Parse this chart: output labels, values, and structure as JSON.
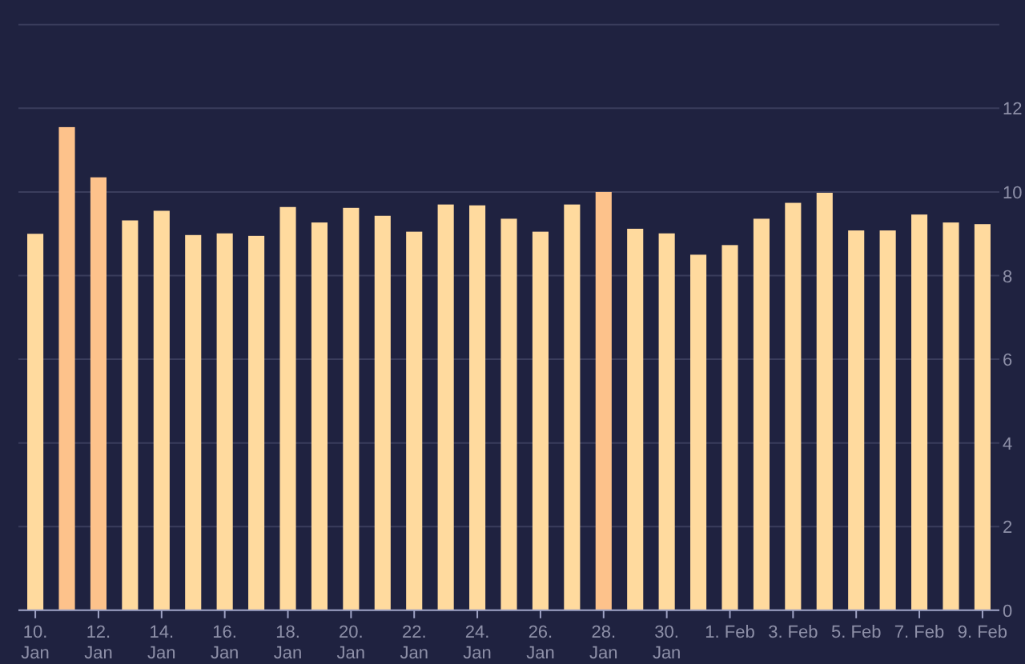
{
  "chart_data": {
    "type": "bar",
    "categories": [
      "10. Jan",
      null,
      "12. Jan",
      null,
      "14. Jan",
      null,
      "16. Jan",
      null,
      "18. Jan",
      null,
      "20. Jan",
      null,
      "22. Jan",
      null,
      "24. Jan",
      null,
      "26. Jan",
      null,
      "28. Jan",
      null,
      "30. Jan",
      null,
      "1. Feb",
      null,
      "3. Feb",
      null,
      "5. Feb",
      null,
      "7. Feb",
      null,
      "9. Feb"
    ],
    "values": [
      9.0,
      11.55,
      10.35,
      9.32,
      9.55,
      8.97,
      9.01,
      8.95,
      9.64,
      9.27,
      9.62,
      9.43,
      9.05,
      9.7,
      9.68,
      9.36,
      9.05,
      9.7,
      10.0,
      9.12,
      9.01,
      8.5,
      8.73,
      9.36,
      9.74,
      9.98,
      9.08,
      9.08,
      9.46,
      9.27,
      9.23
    ],
    "colors": [
      "#ffda9e",
      "#fdc28b",
      "#fdc28b",
      "#ffda9e",
      "#ffda9e",
      "#ffda9e",
      "#ffda9e",
      "#ffda9e",
      "#ffda9e",
      "#ffda9e",
      "#ffda9e",
      "#ffda9e",
      "#ffda9e",
      "#ffda9e",
      "#ffda9e",
      "#ffda9e",
      "#ffda9e",
      "#ffda9e",
      "#fdc28b",
      "#ffda9e",
      "#ffda9e",
      "#ffda9e",
      "#ffda9e",
      "#ffda9e",
      "#ffda9e",
      "#ffda9e",
      "#ffda9e",
      "#ffda9e",
      "#ffda9e",
      "#ffda9e",
      "#ffda9e"
    ],
    "ylim": [
      0,
      14
    ],
    "yticks": [
      0,
      2,
      4,
      6,
      8,
      10,
      12,
      {
        "value": 14,
        "label": null
      }
    ],
    "grid": "y"
  }
}
